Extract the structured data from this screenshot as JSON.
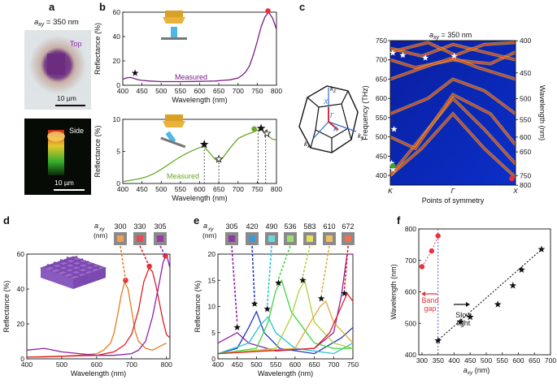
{
  "panel_letters": {
    "a": "a",
    "b": "b",
    "c": "c",
    "d": "d",
    "e": "e",
    "f": "f"
  },
  "panel_a": {
    "label": "a",
    "param": "a",
    "param_sub": "xy",
    "param_value": " = 350 nm",
    "top_label": "Top",
    "side_label": "Side",
    "scale_top": "10 µm",
    "scale_side": "10 µm"
  },
  "chart_data": [
    {
      "panel": "b-top",
      "type": "line",
      "xlabel": "Wavelength (nm)",
      "ylabel": "Reflectance (%)",
      "xlim": [
        400,
        800
      ],
      "ylim": [
        0,
        60
      ],
      "xticks": [
        400,
        450,
        500,
        550,
        600,
        650,
        700,
        750,
        800
      ],
      "yticks": [
        0,
        20,
        40,
        60
      ],
      "legend": "Measured",
      "series": [
        {
          "name": "Measured",
          "color": "#7b1d86",
          "x": [
            400,
            410,
            420,
            430,
            440,
            450,
            470,
            500,
            550,
            600,
            640,
            660,
            680,
            700,
            710,
            720,
            730,
            740,
            750,
            760,
            770,
            780,
            790,
            800
          ],
          "y": [
            5,
            6,
            6.5,
            5.5,
            4.5,
            4,
            3.5,
            3,
            3,
            3.2,
            3.5,
            4,
            4.5,
            6,
            8,
            11,
            16,
            25,
            36,
            48,
            56,
            60,
            55,
            46
          ]
        }
      ],
      "markers": [
        {
          "kind": "star",
          "x": 432,
          "y": 10
        },
        {
          "kind": "dot",
          "x": 778,
          "y": 61,
          "color": "#e8313a"
        }
      ]
    },
    {
      "panel": "b-bottom",
      "type": "line",
      "xlabel": "Wavelength (nm)",
      "ylabel": "Reflectance (%)",
      "xlim": [
        400,
        800
      ],
      "ylim": [
        0,
        10
      ],
      "xticks": [
        400,
        450,
        500,
        550,
        600,
        650,
        700,
        750,
        800
      ],
      "yticks": [
        0,
        5,
        10
      ],
      "legend": "Measured",
      "series": [
        {
          "name": "Measured",
          "color": "#6aa825",
          "x": [
            400,
            420,
            440,
            460,
            480,
            500,
            520,
            540,
            560,
            580,
            600,
            610,
            620,
            640,
            650,
            660,
            680,
            700,
            720,
            740,
            750,
            760,
            770,
            780,
            790,
            800
          ],
          "y": [
            0.3,
            0.5,
            0.7,
            1.0,
            1.5,
            2.2,
            3.0,
            3.8,
            4.5,
            5.1,
            5.6,
            5.8,
            5.2,
            3.8,
            3.4,
            4.0,
            5.6,
            7.0,
            7.6,
            8.0,
            8.3,
            8.4,
            8.0,
            7.3,
            6.9,
            6.8
          ]
        }
      ],
      "markers": [
        {
          "kind": "star",
          "x": 612,
          "y": 6.1
        },
        {
          "kind": "star",
          "x": 650,
          "y": 3.8
        },
        {
          "kind": "dot",
          "x": 742,
          "y": 8.5,
          "color": "#6aa825"
        },
        {
          "kind": "star",
          "x": 760,
          "y": 8.6
        },
        {
          "kind": "star",
          "x": 775,
          "y": 7.8
        }
      ],
      "guides": [
        612,
        650,
        752,
        772
      ]
    },
    {
      "panel": "c-band",
      "type": "heatmap",
      "title_param": "a",
      "title_sub": "xy",
      "title_value": " = 350 nm",
      "ylabel_left": "Frequency (THz)",
      "ylabel_right": "Wavelength (nm)",
      "xlabel": "Points of symmetry",
      "ylim": [
        375,
        750
      ],
      "yticks_left": [
        400,
        450,
        500,
        550,
        600,
        650,
        700,
        750
      ],
      "yticks_right": [
        400,
        450,
        500,
        550,
        600,
        650,
        750,
        800
      ],
      "xticks": [
        "K",
        "Γ",
        "X"
      ],
      "markers": [
        {
          "kind": "star",
          "pos": 0.02,
          "f": 718
        },
        {
          "kind": "star",
          "pos": 0.1,
          "f": 712
        },
        {
          "kind": "star",
          "pos": 0.28,
          "f": 705
        },
        {
          "kind": "star",
          "pos": 0.51,
          "f": 710
        },
        {
          "kind": "star",
          "pos": 0.03,
          "f": 520
        },
        {
          "kind": "star",
          "pos": 0.01,
          "f": 432
        },
        {
          "kind": "star",
          "pos": 0.02,
          "f": 416
        },
        {
          "kind": "dot",
          "pos": 0.02,
          "f": 425,
          "color": "#3aa335"
        },
        {
          "kind": "dot",
          "pos": 0.97,
          "f": 392,
          "color": "#e8313a"
        }
      ]
    },
    {
      "panel": "d",
      "type": "line",
      "xlabel": "Wavelength (nm)",
      "ylabel": "Reflectance (%)",
      "xlim": [
        400,
        810
      ],
      "ylim": [
        0,
        60
      ],
      "xticks": [
        400,
        500,
        600,
        700,
        800
      ],
      "yticks": [
        0,
        20,
        40,
        60
      ],
      "legend_param": "a",
      "legend_sub": "xy",
      "legend_unit": "(nm)",
      "legend_values": [
        "300",
        "330",
        "305"
      ],
      "series": [
        {
          "name": "300",
          "color": "#e47d20",
          "x": [
            400,
            450,
            500,
            550,
            600,
            620,
            640,
            650,
            660,
            670,
            680,
            690,
            700,
            710,
            720,
            740,
            760,
            780,
            800
          ],
          "y": [
            1,
            1,
            1.5,
            2,
            3,
            5,
            9,
            15,
            25,
            36,
            44,
            40,
            28,
            16,
            10,
            6,
            5,
            7,
            9
          ]
        },
        {
          "name": "330",
          "color": "#e11d22",
          "x": [
            400,
            500,
            600,
            650,
            680,
            700,
            720,
            735,
            750,
            760,
            770,
            780,
            790,
            800,
            810
          ],
          "y": [
            1,
            1.5,
            2,
            4,
            8,
            14,
            28,
            44,
            52,
            50,
            42,
            32,
            22,
            14,
            12
          ]
        },
        {
          "name": "305",
          "color": "#8e1fa8",
          "x": [
            400,
            450,
            500,
            550,
            600,
            650,
            700,
            720,
            740,
            760,
            770,
            780,
            790,
            800,
            810
          ],
          "y": [
            5,
            6,
            4,
            3,
            2,
            2,
            3,
            5,
            10,
            24,
            34,
            44,
            55,
            60,
            52
          ]
        }
      ],
      "markers": [
        {
          "kind": "dot",
          "x": 683,
          "y": 45,
          "color": "#e8313a"
        },
        {
          "kind": "dot",
          "x": 751,
          "y": 53,
          "color": "#e8313a"
        },
        {
          "kind": "dot",
          "x": 797,
          "y": 59,
          "color": "#e8313a"
        }
      ]
    },
    {
      "panel": "e",
      "type": "line",
      "xlabel": "Wavelength (nm)",
      "ylabel": "Reflectance (%)",
      "xlim": [
        400,
        750
      ],
      "ylim": [
        0,
        20
      ],
      "xticks": [
        400,
        450,
        500,
        550,
        600,
        650,
        700,
        750
      ],
      "yticks": [
        0,
        5,
        10,
        15,
        20
      ],
      "legend_param": "a",
      "legend_sub": "xy",
      "legend_unit": "(nm)",
      "legend_values": [
        "305",
        "420",
        "490",
        "536",
        "583",
        "610",
        "672"
      ],
      "series": [
        {
          "name": "305",
          "color": "#8e1fa8",
          "x": [
            400,
            430,
            450,
            480,
            550,
            650,
            700,
            720,
            735,
            750
          ],
          "y": [
            3,
            4.2,
            5,
            3,
            1.5,
            2,
            5,
            12,
            20,
            20
          ]
        },
        {
          "name": "420",
          "color": "#2035c8",
          "x": [
            400,
            450,
            480,
            500,
            520,
            560,
            650,
            720,
            750
          ],
          "y": [
            1,
            2,
            6,
            9,
            5,
            2,
            1,
            4,
            6
          ]
        },
        {
          "name": "490",
          "color": "#25c2d6",
          "x": [
            400,
            480,
            510,
            530,
            550,
            600,
            700,
            750
          ],
          "y": [
            1,
            3,
            6.5,
            8,
            5,
            2,
            1,
            3
          ]
        },
        {
          "name": "536",
          "color": "#3fd43f",
          "x": [
            400,
            500,
            530,
            550,
            565,
            590,
            650,
            700,
            750
          ],
          "y": [
            1,
            2,
            7,
            13,
            15,
            9,
            3,
            2,
            2
          ]
        },
        {
          "name": "583",
          "color": "#aed238",
          "x": [
            400,
            550,
            590,
            610,
            625,
            650,
            700,
            750
          ],
          "y": [
            1,
            2,
            8,
            13,
            15,
            7,
            3,
            2
          ]
        },
        {
          "name": "610",
          "color": "#e3a83b",
          "x": [
            400,
            600,
            640,
            665,
            680,
            700,
            750
          ],
          "y": [
            1,
            2,
            7,
            10,
            11,
            7,
            3
          ]
        },
        {
          "name": "672",
          "color": "#e11d22",
          "x": [
            400,
            650,
            690,
            720,
            735,
            750
          ],
          "y": [
            1,
            2,
            5,
            10,
            12.5,
            11
          ]
        }
      ],
      "markers": [
        {
          "kind": "star",
          "x": 450,
          "y": 6
        },
        {
          "kind": "star",
          "x": 495,
          "y": 10.5
        },
        {
          "kind": "star",
          "x": 528,
          "y": 9.5
        },
        {
          "kind": "star",
          "x": 557,
          "y": 14.5
        },
        {
          "kind": "star",
          "x": 620,
          "y": 15
        },
        {
          "kind": "star",
          "x": 668,
          "y": 11.5
        },
        {
          "kind": "star",
          "x": 728,
          "y": 12.5
        }
      ]
    },
    {
      "panel": "f",
      "type": "scatter",
      "xlabel_param": "a",
      "xlabel_sub": "xy",
      "xlabel_unit": " (nm)",
      "ylabel": "Wavelength (nm)",
      "xlim": [
        290,
        700
      ],
      "ylim": [
        400,
        800
      ],
      "xticks": [
        300,
        350,
        400,
        450,
        500,
        550,
        600,
        650,
        700
      ],
      "yticks": [
        400,
        500,
        600,
        700,
        800
      ],
      "band_gap_label": [
        "Band",
        "gap"
      ],
      "slow_light_label": [
        "Slow",
        "light"
      ],
      "series": [
        {
          "name": "Band gap",
          "color": "#e8313a",
          "marker": "dot",
          "x": [
            300,
            330,
            350
          ],
          "y": [
            680,
            730,
            778
          ]
        },
        {
          "name": "Slow light",
          "color": "#111111",
          "marker": "star",
          "x": [
            350,
            420,
            450,
            536,
            583,
            610,
            672
          ],
          "y": [
            445,
            505,
            520,
            560,
            620,
            670,
            735
          ]
        }
      ],
      "fit_line": {
        "x": [
          345,
          680
        ],
        "y": [
          442,
          742
        ]
      },
      "vline_x": 350
    }
  ]
}
